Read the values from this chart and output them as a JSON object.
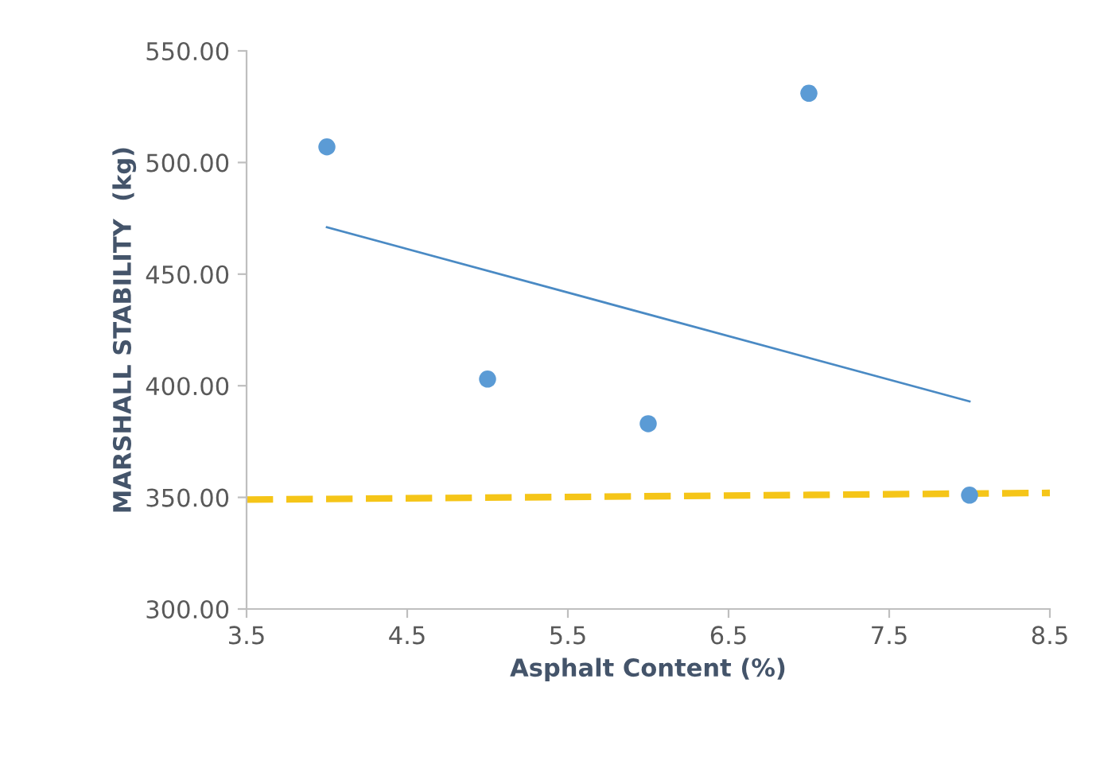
{
  "chart_data": {
    "type": "scatter",
    "xlabel": "Asphalt Content (%)",
    "ylabel": "MARSHALL STABILITY  (kg)",
    "xlim": [
      3.5,
      8.5
    ],
    "xticks": [
      3.5,
      4.5,
      5.5,
      6.5,
      7.5,
      8.5
    ],
    "ylim": [
      300,
      550
    ],
    "yticks": [
      {
        "value": 300,
        "label": "300.00"
      },
      {
        "value": 350,
        "label": "350.00"
      },
      {
        "value": 400,
        "label": "400.00"
      },
      {
        "value": 450,
        "label": "450.00"
      },
      {
        "value": 500,
        "label": "500.00"
      },
      {
        "value": 550,
        "label": "550.00"
      }
    ],
    "grid": false,
    "marker": "circle",
    "series": [
      {
        "color": "#5b9bd5",
        "x": [
          4,
          5,
          6,
          7,
          8
        ],
        "values": [
          507,
          403,
          383,
          531,
          351
        ]
      },
      {
        "type": "line",
        "color": "#4a8ac4",
        "line_style": "solid",
        "marker": "none",
        "x": [
          4,
          8
        ],
        "values": [
          471,
          393
        ]
      },
      {
        "type": "line",
        "color": "#f5c518",
        "line_style": "dashed",
        "marker": "none",
        "x": [
          3.5,
          8.5
        ],
        "values": [
          349,
          352
        ]
      }
    ]
  }
}
